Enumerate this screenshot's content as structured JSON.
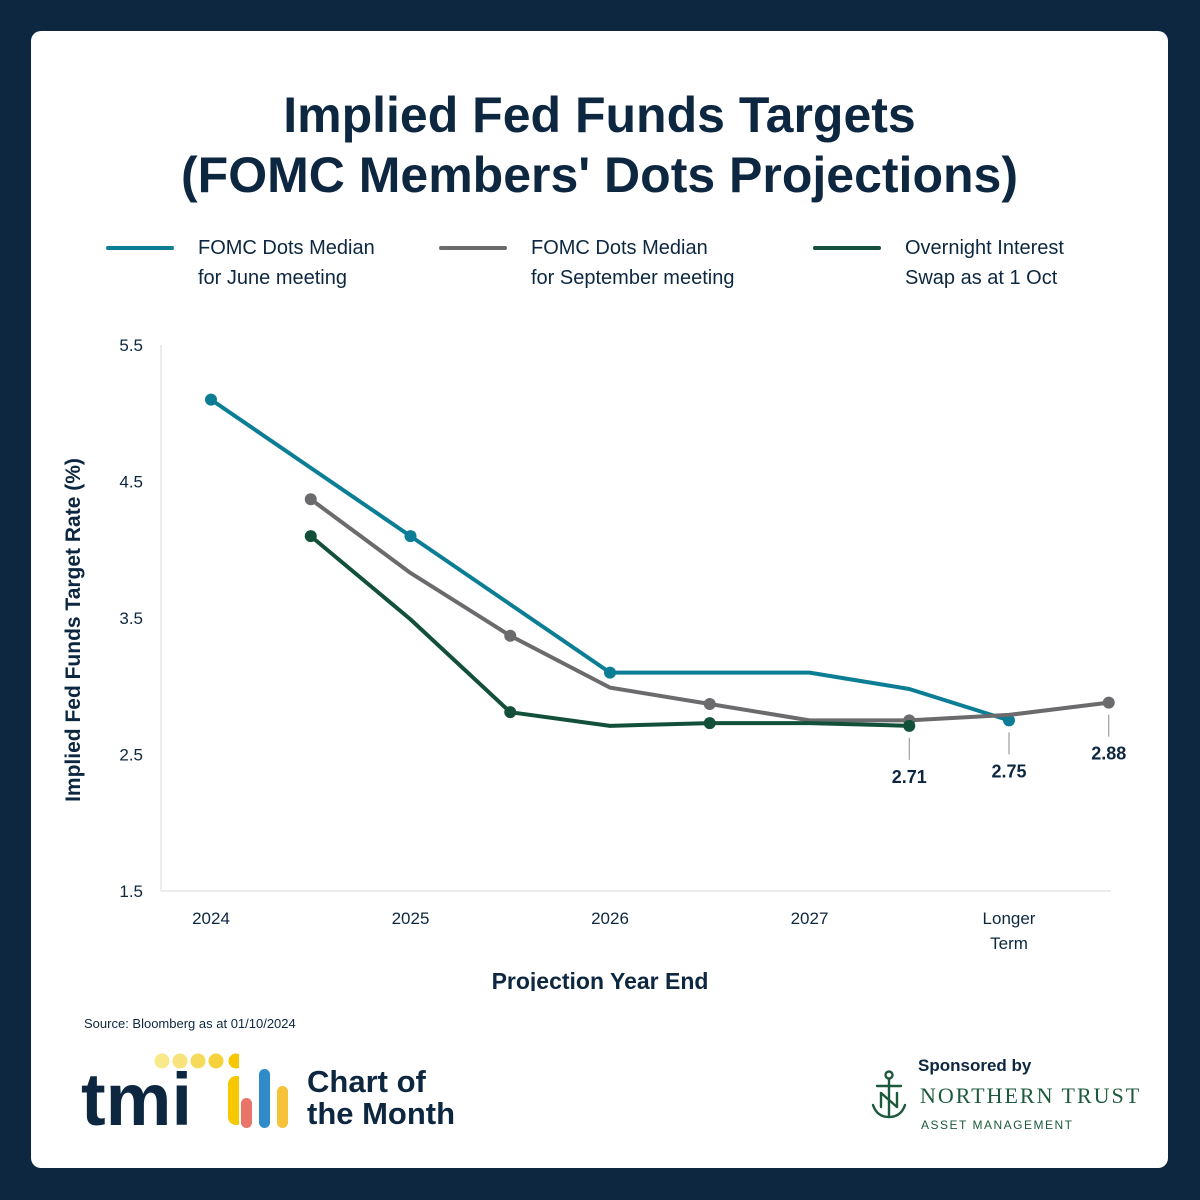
{
  "title_line1": "Implied Fed Funds Targets",
  "title_line2": "(FOMC Members' Dots Projections)",
  "legend": [
    {
      "line1": "FOMC Dots Median",
      "line2": "for June meeting",
      "color": "#0b7d95"
    },
    {
      "line1": "FOMC Dots Median",
      "line2": "for September meeting",
      "color": "#6b6b6e"
    },
    {
      "line1": "Overnight Interest",
      "line2": "Swap as at 1 Oct",
      "color": "#12503a"
    }
  ],
  "source": "Source: Bloomberg as at 01/10/2024",
  "branding": {
    "tmi_logo": "tmi",
    "chart_of_the_month_line1": "Chart of",
    "chart_of_the_month_line2": "the Month",
    "sponsored_by": "Sponsored by",
    "sponsor_name": "NORTHERN TRUST",
    "sponsor_sub": "ASSET MANAGEMENT",
    "tmi_dot_color": "#f5c800",
    "tmi_text_color": "#0d2740"
  },
  "chart_data": {
    "type": "line",
    "xlabel": "Projection Year End",
    "ylabel": "Implied Fed Funds Target Rate (%)",
    "ylim": [
      1.5,
      5.5
    ],
    "yticks": [
      1.5,
      2.5,
      3.5,
      4.5,
      5.5
    ],
    "ytick_labels": [
      "1.5",
      "2.5",
      "3.5",
      "4.5",
      "5.5"
    ],
    "x_ticks": [
      {
        "x": 0,
        "label": "2024"
      },
      {
        "x": 1,
        "label": "2025"
      },
      {
        "x": 2,
        "label": "2026"
      },
      {
        "x": 3,
        "label": "2027"
      },
      {
        "x": 4,
        "label": "Longer Term"
      }
    ],
    "x_range": [
      -0.25,
      4.5
    ],
    "grid": false,
    "legend_position": "top",
    "series": [
      {
        "name": "FOMC Dots Median for June meeting",
        "color": "#0b7d95",
        "points": [
          {
            "x": 0,
            "y": 5.1,
            "marker": true
          },
          {
            "x": 0.5,
            "y": 4.6,
            "marker": false
          },
          {
            "x": 1,
            "y": 4.1,
            "marker": true
          },
          {
            "x": 1.5,
            "y": 3.6,
            "marker": false
          },
          {
            "x": 2,
            "y": 3.1,
            "marker": true
          },
          {
            "x": 3,
            "y": 3.1,
            "marker": false
          },
          {
            "x": 3.5,
            "y": 2.98,
            "marker": false
          },
          {
            "x": 4,
            "y": 2.75,
            "marker": true
          }
        ]
      },
      {
        "name": "FOMC Dots Median for September meeting",
        "color": "#6b6b6e",
        "points": [
          {
            "x": 0.5,
            "y": 4.37,
            "marker": true
          },
          {
            "x": 1,
            "y": 3.83,
            "marker": false
          },
          {
            "x": 1.5,
            "y": 3.37,
            "marker": true
          },
          {
            "x": 2,
            "y": 2.99,
            "marker": false
          },
          {
            "x": 2.5,
            "y": 2.87,
            "marker": true
          },
          {
            "x": 3,
            "y": 2.75,
            "marker": false
          },
          {
            "x": 3.5,
            "y": 2.75,
            "marker": true
          },
          {
            "x": 4,
            "y": 2.79,
            "marker": false
          },
          {
            "x": 4.5,
            "y": 2.88,
            "marker": true
          }
        ]
      },
      {
        "name": "Overnight Interest Swap as at 1 Oct",
        "color": "#12503a",
        "points": [
          {
            "x": 0.5,
            "y": 4.1,
            "marker": true
          },
          {
            "x": 1,
            "y": 3.49,
            "marker": false
          },
          {
            "x": 1.5,
            "y": 2.81,
            "marker": true
          },
          {
            "x": 2,
            "y": 2.71,
            "marker": false
          },
          {
            "x": 2.5,
            "y": 2.73,
            "marker": true
          },
          {
            "x": 3,
            "y": 2.73,
            "marker": false
          },
          {
            "x": 3.5,
            "y": 2.71,
            "marker": true
          }
        ]
      }
    ],
    "annotations": [
      {
        "x": 3.5,
        "y": 2.71,
        "text": "2.71"
      },
      {
        "x": 4,
        "y": 2.75,
        "text": "2.75"
      },
      {
        "x": 4.5,
        "y": 2.88,
        "text": "2.88"
      }
    ]
  }
}
